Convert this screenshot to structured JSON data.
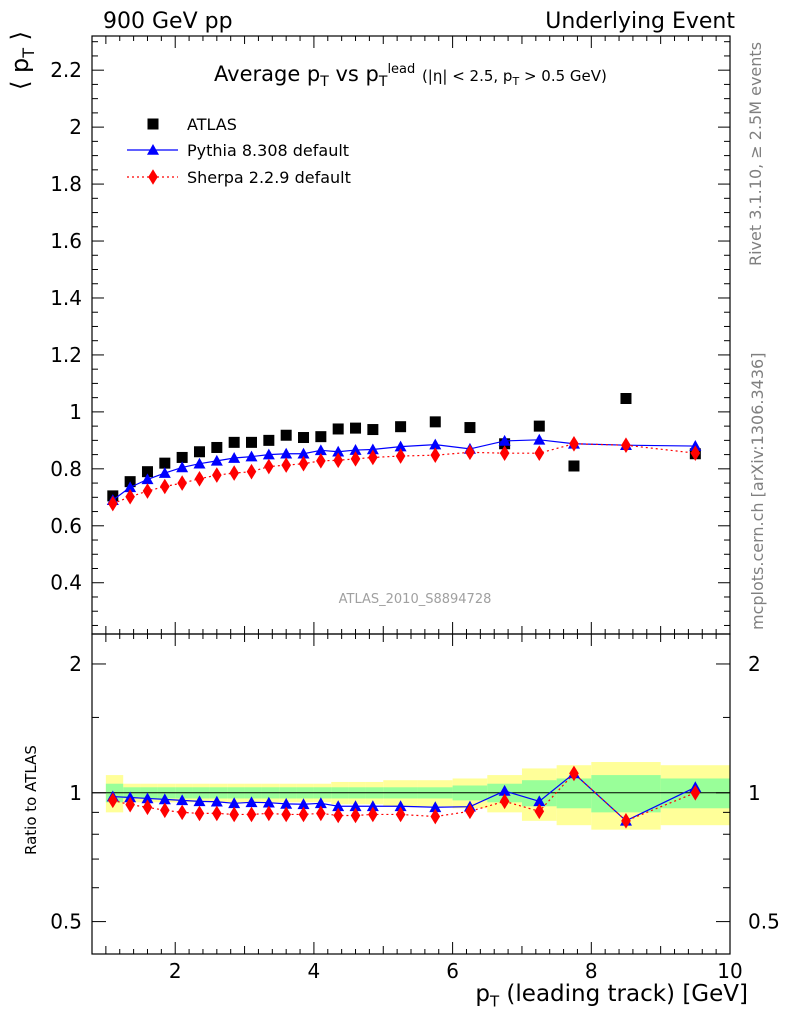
{
  "header": {
    "left": "900 GeV pp",
    "right": "Underlying Event"
  },
  "side_texts": {
    "rivet": "Rivet 3.1.10, ≥ 2.5M events",
    "mcplots": "mcplots.cern.ch [arXiv:1306.3436]"
  },
  "colors": {
    "atlas": "#000000",
    "pythia": "#0000ff",
    "sherpa": "#ff0000",
    "band_inner": "#99ff99",
    "band_outer": "#ffff99",
    "side_text": "#808080",
    "watermark": "#a0a0a0"
  },
  "chart_data": [
    {
      "type": "scatter",
      "title": "Average pT vs pTlead (|η| < 2.5, pT > 0.5 GeV)",
      "ylabel": "⟨ pT ⟩",
      "xlabel": "",
      "watermark": "ATLAS_2010_S8894728",
      "xlim": [
        0.8,
        10.0
      ],
      "ylim": [
        0.22,
        2.32
      ],
      "yticks": [
        0.4,
        0.6,
        0.8,
        1.0,
        1.2,
        1.4,
        1.6,
        1.8,
        2.0,
        2.2
      ],
      "ytick_labels": [
        "0.4",
        "0.6",
        "0.8",
        "1",
        "1.2",
        "1.4",
        "1.6",
        "1.8",
        "2",
        "2.2"
      ],
      "legend_position": "top-left",
      "x": [
        1.1,
        1.35,
        1.6,
        1.85,
        2.1,
        2.35,
        2.6,
        2.85,
        3.1,
        3.35,
        3.6,
        3.85,
        4.1,
        4.35,
        4.6,
        4.85,
        5.25,
        5.75,
        6.25,
        6.75,
        7.25,
        7.75,
        8.5,
        9.5
      ],
      "series": [
        {
          "name": "ATLAS",
          "marker": "square",
          "values": [
            0.705,
            0.755,
            0.79,
            0.82,
            0.84,
            0.86,
            0.875,
            0.893,
            0.893,
            0.9,
            0.918,
            0.91,
            0.913,
            0.94,
            0.943,
            0.938,
            0.948,
            0.965,
            0.945,
            0.888,
            0.95,
            0.81,
            1.047,
            0.853
          ]
        },
        {
          "name": "Pythia 8.308 default",
          "marker": "triangle",
          "line": "solid",
          "values": [
            0.69,
            0.735,
            0.763,
            0.785,
            0.805,
            0.818,
            0.828,
            0.838,
            0.843,
            0.85,
            0.853,
            0.853,
            0.865,
            0.86,
            0.866,
            0.868,
            0.878,
            0.885,
            0.87,
            0.898,
            0.902,
            0.888,
            0.883,
            0.88
          ]
        },
        {
          "name": "Sherpa 2.2.9 default",
          "marker": "diamond",
          "line": "dotted",
          "values": [
            0.678,
            0.702,
            0.722,
            0.738,
            0.75,
            0.765,
            0.778,
            0.785,
            0.79,
            0.808,
            0.813,
            0.818,
            0.828,
            0.83,
            0.835,
            0.84,
            0.845,
            0.848,
            0.858,
            0.855,
            0.855,
            0.888,
            0.883,
            0.855
          ]
        }
      ]
    },
    {
      "type": "line",
      "ylabel": "Ratio to ATLAS",
      "xlabel": "pT (leading track) [GeV]",
      "xlim": [
        0.8,
        10.0
      ],
      "ylim": [
        0.42,
        2.35
      ],
      "log_y": true,
      "xticks": [
        2,
        4,
        6,
        8,
        10
      ],
      "xtick_labels": [
        "2",
        "4",
        "6",
        "8",
        "10"
      ],
      "yticks": [
        0.5,
        1,
        2
      ],
      "ytick_labels": [
        "0.5",
        "1",
        "2"
      ],
      "x": [
        1.1,
        1.35,
        1.6,
        1.85,
        2.1,
        2.35,
        2.6,
        2.85,
        3.1,
        3.35,
        3.6,
        3.85,
        4.1,
        4.35,
        4.6,
        4.85,
        5.25,
        5.75,
        6.25,
        6.75,
        7.25,
        7.75,
        8.5,
        9.5
      ],
      "bin_edges": [
        1.0,
        1.25,
        1.5,
        1.75,
        2.0,
        2.25,
        2.5,
        2.75,
        3.0,
        3.25,
        3.5,
        3.75,
        4.0,
        4.25,
        4.5,
        4.75,
        5.0,
        5.5,
        6.0,
        6.5,
        7.0,
        7.5,
        8.0,
        9.0,
        10.0
      ],
      "band_inner": [
        0.05,
        0.03,
        0.03,
        0.03,
        0.03,
        0.03,
        0.03,
        0.03,
        0.03,
        0.03,
        0.03,
        0.03,
        0.03,
        0.03,
        0.03,
        0.03,
        0.03,
        0.03,
        0.04,
        0.05,
        0.07,
        0.08,
        0.1,
        0.08
      ],
      "band_outer": [
        0.1,
        0.05,
        0.05,
        0.05,
        0.05,
        0.05,
        0.05,
        0.05,
        0.05,
        0.05,
        0.05,
        0.05,
        0.05,
        0.06,
        0.06,
        0.06,
        0.07,
        0.07,
        0.08,
        0.1,
        0.14,
        0.16,
        0.18,
        0.16
      ],
      "series": [
        {
          "name": "Pythia 8.308 default",
          "values": [
            0.98,
            0.975,
            0.97,
            0.965,
            0.96,
            0.955,
            0.953,
            0.945,
            0.95,
            0.948,
            0.942,
            0.94,
            0.945,
            0.93,
            0.93,
            0.93,
            0.93,
            0.925,
            0.928,
            1.01,
            0.955,
            1.11,
            0.86,
            1.03
          ]
        },
        {
          "name": "Sherpa 2.2.9 default",
          "values": [
            0.96,
            0.938,
            0.925,
            0.91,
            0.9,
            0.895,
            0.895,
            0.89,
            0.89,
            0.895,
            0.89,
            0.89,
            0.895,
            0.885,
            0.885,
            0.89,
            0.89,
            0.88,
            0.905,
            0.955,
            0.905,
            1.11,
            0.86,
            1.0
          ]
        }
      ]
    }
  ]
}
